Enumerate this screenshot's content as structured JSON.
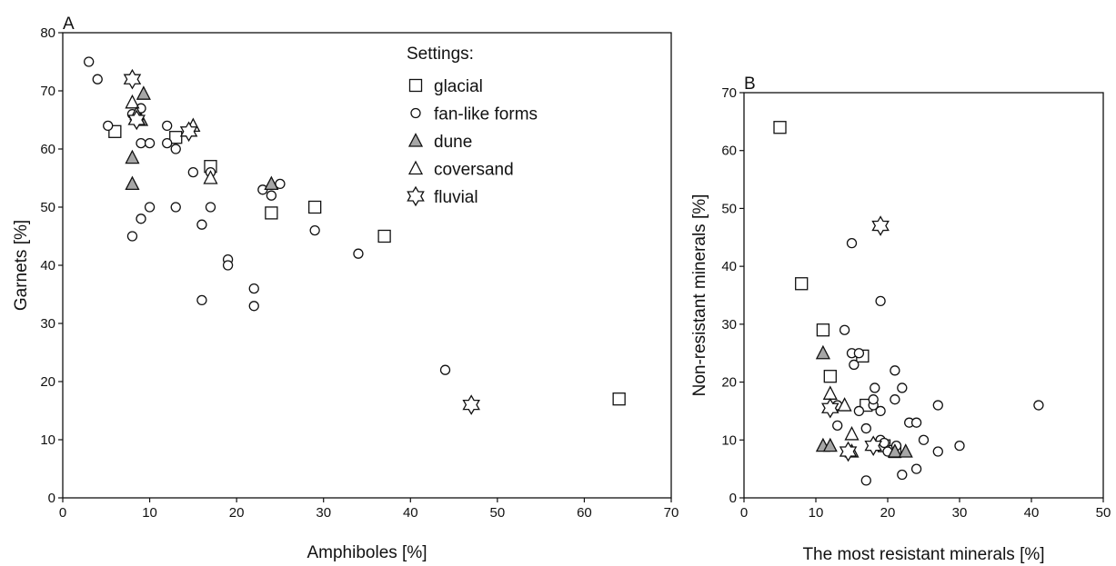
{
  "colors": {
    "axis": "#111111",
    "marker_fill_gray": "#a6a6a6",
    "marker_fill_white": "#ffffff"
  },
  "chart_data": [
    {
      "panel": "A",
      "type": "scatter",
      "xlabel": "Amphiboles [%]",
      "ylabel": "Garnets [%]",
      "xlim": [
        0,
        70
      ],
      "ylim": [
        0,
        80
      ],
      "xticks": [
        "0",
        "10",
        "20",
        "30",
        "40",
        "50",
        "60",
        "70"
      ],
      "yticks": [
        "0",
        "10",
        "20",
        "30",
        "40",
        "50",
        "60",
        "70",
        "80"
      ],
      "grid": false,
      "legend": {
        "title": "Settings:",
        "position": "top-right",
        "entries": [
          {
            "name": "glacial",
            "marker": "square"
          },
          {
            "name": "fan-like forms",
            "marker": "circle"
          },
          {
            "name": "dune",
            "marker": "triangle-filled"
          },
          {
            "name": "coversand",
            "marker": "triangle"
          },
          {
            "name": "fluvial",
            "marker": "star"
          }
        ]
      },
      "series": [
        {
          "name": "glacial",
          "marker": "square",
          "points": [
            [
              6,
              63
            ],
            [
              13,
              62
            ],
            [
              17,
              57
            ],
            [
              24,
              49
            ],
            [
              29,
              50
            ],
            [
              37,
              45
            ],
            [
              64,
              17
            ]
          ]
        },
        {
          "name": "fan-like forms",
          "marker": "circle",
          "points": [
            [
              3,
              75
            ],
            [
              4,
              72
            ],
            [
              5.2,
              64
            ],
            [
              8,
              66
            ],
            [
              8,
              45
            ],
            [
              9,
              67
            ],
            [
              9,
              61
            ],
            [
              9,
              48
            ],
            [
              10,
              61
            ],
            [
              10,
              50
            ],
            [
              12,
              64
            ],
            [
              12,
              61
            ],
            [
              13,
              60
            ],
            [
              13,
              50
            ],
            [
              15,
              56
            ],
            [
              16,
              47
            ],
            [
              16,
              34
            ],
            [
              17,
              56
            ],
            [
              17,
              50
            ],
            [
              19,
              41
            ],
            [
              19,
              40
            ],
            [
              22,
              36
            ],
            [
              22,
              33
            ],
            [
              23,
              53
            ],
            [
              24,
              52
            ],
            [
              25,
              54
            ],
            [
              29,
              46
            ],
            [
              34,
              42
            ],
            [
              44,
              22
            ]
          ]
        },
        {
          "name": "dune",
          "marker": "triangle-filled",
          "points": [
            [
              8,
              58.5
            ],
            [
              8,
              54
            ],
            [
              9,
              65
            ],
            [
              9.3,
              69.5
            ],
            [
              24,
              54
            ]
          ]
        },
        {
          "name": "coversand",
          "marker": "triangle",
          "points": [
            [
              8,
              68
            ],
            [
              8.5,
              66
            ],
            [
              15,
              64
            ],
            [
              17,
              55
            ]
          ]
        },
        {
          "name": "fluvial",
          "marker": "star",
          "points": [
            [
              8,
              72
            ],
            [
              8.5,
              65
            ],
            [
              14.5,
              63
            ],
            [
              47,
              16
            ]
          ]
        }
      ]
    },
    {
      "panel": "B",
      "type": "scatter",
      "xlabel": "The most resistant minerals [%]",
      "ylabel": "Non-resistant minerals [%]",
      "xlim": [
        0,
        50
      ],
      "ylim": [
        0,
        70
      ],
      "xticks": [
        "0",
        "10",
        "20",
        "30",
        "40",
        "50"
      ],
      "yticks": [
        "0",
        "10",
        "20",
        "30",
        "40",
        "50",
        "60",
        "70"
      ],
      "grid": false,
      "series": [
        {
          "name": "glacial",
          "marker": "square",
          "points": [
            [
              5,
              64
            ],
            [
              8,
              37
            ],
            [
              11,
              29
            ],
            [
              12,
              21
            ],
            [
              16.5,
              24.5
            ],
            [
              17,
              16
            ],
            [
              19.5,
              9
            ],
            [
              21,
              8
            ]
          ]
        },
        {
          "name": "fan-like forms",
          "marker": "circle",
          "points": [
            [
              14,
              29
            ],
            [
              15,
              44
            ],
            [
              15,
              25
            ],
            [
              15.3,
              23
            ],
            [
              16,
              25
            ],
            [
              16,
              15
            ],
            [
              17,
              12
            ],
            [
              17,
              3
            ],
            [
              18,
              16
            ],
            [
              18,
              17
            ],
            [
              18.2,
              19
            ],
            [
              19,
              34
            ],
            [
              19,
              15
            ],
            [
              19,
              10
            ],
            [
              19.5,
              9.5
            ],
            [
              20,
              8
            ],
            [
              21,
              22
            ],
            [
              21,
              17
            ],
            [
              21.2,
              9
            ],
            [
              22,
              19
            ],
            [
              22,
              4
            ],
            [
              23,
              13
            ],
            [
              24,
              13
            ],
            [
              24,
              5
            ],
            [
              25,
              10
            ],
            [
              27,
              16
            ],
            [
              27,
              8
            ],
            [
              30,
              9
            ],
            [
              41,
              16
            ],
            [
              13,
              16
            ],
            [
              13,
              12.5
            ]
          ]
        },
        {
          "name": "dune",
          "marker": "triangle-filled",
          "points": [
            [
              11,
              25
            ],
            [
              11,
              9
            ],
            [
              12,
              9
            ],
            [
              21,
              8
            ],
            [
              22.5,
              8
            ]
          ]
        },
        {
          "name": "coversand",
          "marker": "triangle",
          "points": [
            [
              12,
              18
            ],
            [
              14,
              16
            ],
            [
              15,
              11
            ],
            [
              15,
              8
            ]
          ]
        },
        {
          "name": "fluvial",
          "marker": "star",
          "points": [
            [
              19,
              47
            ],
            [
              12,
              15.5
            ],
            [
              14.5,
              8
            ],
            [
              18,
              9
            ]
          ]
        }
      ]
    }
  ]
}
